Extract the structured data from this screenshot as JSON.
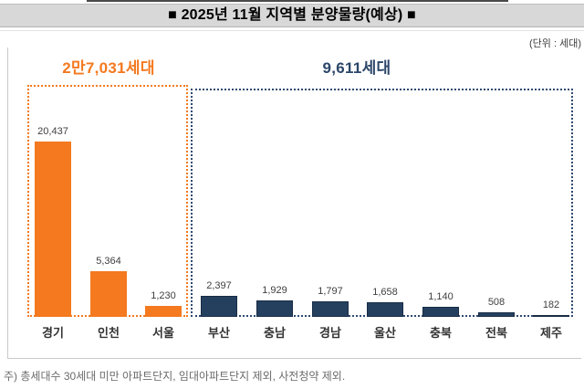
{
  "title": "■ 2025년 11월 지역별 분양물량(예상) ■",
  "unit_label": "(단위 : 세대)",
  "footnote": "주) 총세대수 30세대 미만 아파트단지, 임대아파트단지 제외, 사전청약 제외.",
  "colors": {
    "orange_accent": "#F4791F",
    "orange_bar": "#F4791F",
    "navy_bar": "#25405F",
    "navy_bar_border": "#182C45",
    "navy_text": "#2B4668",
    "navy_box_border": "#2E4A70",
    "title_band_bg": "#D8D8D8",
    "value_label_color": "#404040"
  },
  "chart_data": {
    "type": "bar",
    "title": "■ 2025년 11월 지역별 분양물량(예상) ■",
    "unit": "세대",
    "categories": [
      "경기",
      "인천",
      "서울",
      "부산",
      "충남",
      "경남",
      "울산",
      "충북",
      "전북",
      "제주"
    ],
    "values": [
      20437,
      5364,
      1230,
      2397,
      1929,
      1797,
      1658,
      1140,
      508,
      182
    ],
    "value_labels": [
      "20,437",
      "5,364",
      "1,230",
      "2,397",
      "1,929",
      "1,797",
      "1,658",
      "1,140",
      "508",
      "182"
    ],
    "ylim": [
      0,
      22000
    ],
    "grid": false,
    "legend": "none",
    "groups": [
      {
        "total_label": "2만7,031세대",
        "total_value": 27031,
        "categories": [
          "경기",
          "인천",
          "서울"
        ],
        "values": [
          20437,
          5364,
          1230
        ],
        "color": "#F4791F"
      },
      {
        "total_label": "9,611세대",
        "total_value": 9611,
        "categories": [
          "부산",
          "충남",
          "경남",
          "울산",
          "충북",
          "전북",
          "제주"
        ],
        "values": [
          2397,
          1929,
          1797,
          1658,
          1140,
          508,
          182
        ],
        "color": "#25405F"
      }
    ]
  }
}
